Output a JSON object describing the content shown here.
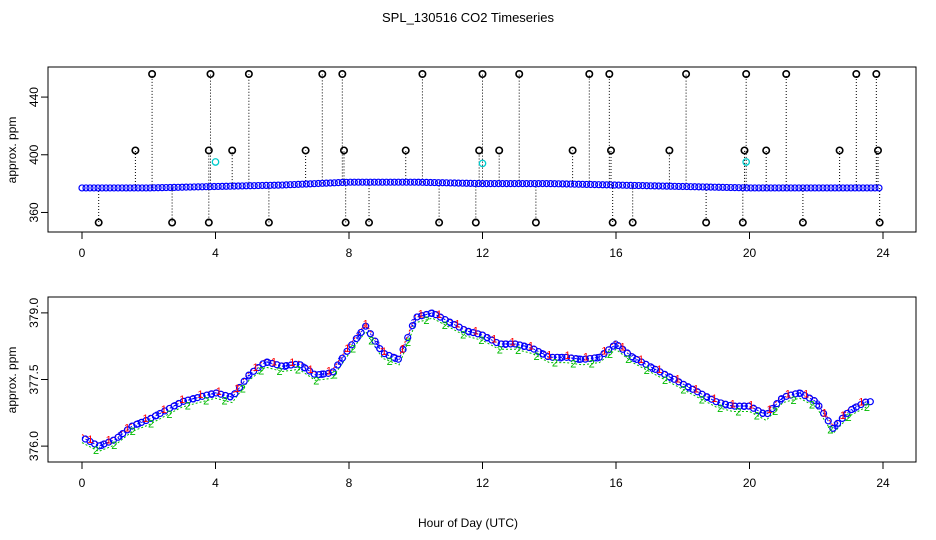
{
  "chart_data": {
    "title": "SPL_130516  CO2 Timeseries",
    "xlabel": "Hour of Day (UTC)",
    "panels": [
      {
        "type": "scatter",
        "ylabel": "approx. ppm",
        "xlim": [
          0,
          24
        ],
        "ylim": [
          352,
          456
        ],
        "xticks": [
          0,
          4,
          8,
          12,
          16,
          20,
          24
        ],
        "yticks": [
          360,
          400,
          440
        ],
        "baseline": [
          [
            0,
            377
          ],
          [
            2,
            377
          ],
          [
            4,
            378
          ],
          [
            6,
            379
          ],
          [
            8,
            381
          ],
          [
            10,
            381
          ],
          [
            12,
            380
          ],
          [
            14,
            380
          ],
          [
            16,
            379
          ],
          [
            18,
            378
          ],
          [
            20,
            377
          ],
          [
            22,
            377
          ],
          [
            24,
            377
          ]
        ],
        "spike_high_hours": [
          2.1,
          3.85,
          5.0,
          7.2,
          7.8,
          10.2,
          12.0,
          13.1,
          15.2,
          15.8,
          18.1,
          19.9,
          21.1,
          23.2,
          23.8
        ],
        "spike_mid_hours": [
          1.6,
          3.8,
          4.5,
          6.7,
          7.85,
          9.7,
          11.9,
          12.5,
          14.7,
          15.85,
          17.6,
          19.85,
          20.5,
          22.7,
          23.85
        ],
        "spike_low_hours": [
          0.5,
          2.7,
          3.8,
          5.6,
          7.9,
          8.6,
          10.7,
          11.8,
          13.6,
          15.9,
          16.5,
          18.7,
          19.8,
          21.6,
          23.9
        ],
        "high_value": 456,
        "mid_value": 403,
        "low_value": 353,
        "cyan_points": [
          [
            4.0,
            395
          ],
          [
            12.0,
            394
          ],
          [
            19.9,
            395
          ]
        ]
      },
      {
        "type": "line",
        "ylabel": "approx. ppm",
        "xlim": [
          0,
          24
        ],
        "ylim": [
          375.8,
          379.2
        ],
        "xticks": [
          0,
          4,
          8,
          12,
          16,
          20,
          24
        ],
        "yticks": [
          376.0,
          377.5,
          379.0
        ],
        "ytick_labels": [
          "376.0",
          "377.5",
          "379.0"
        ],
        "series": [
          {
            "name": "1",
            "color": "#ff0000",
            "offset": 0.06
          },
          {
            "name": "2",
            "color": "#00bb00",
            "offset": -0.12
          },
          {
            "name": "3",
            "color": "#0000ff",
            "offset": 0.0
          }
        ],
        "x": [
          0.0,
          0.5,
          1.0,
          1.5,
          2.0,
          2.5,
          3.0,
          3.5,
          4.0,
          4.5,
          5.0,
          5.5,
          6.0,
          6.5,
          7.0,
          7.5,
          8.0,
          8.5,
          9.0,
          9.5,
          10.0,
          10.5,
          11.0,
          11.5,
          12.0,
          12.5,
          13.0,
          13.5,
          14.0,
          14.5,
          15.0,
          15.5,
          16.0,
          16.5,
          17.0,
          17.5,
          18.0,
          18.5,
          19.0,
          19.5,
          20.0,
          20.5,
          21.0,
          21.5,
          22.0,
          22.5,
          23.0,
          23.5
        ],
        "values": [
          376.2,
          376.0,
          376.15,
          376.45,
          376.6,
          376.8,
          377.0,
          377.1,
          377.2,
          377.1,
          377.6,
          377.9,
          377.8,
          377.85,
          377.6,
          377.65,
          378.2,
          378.7,
          378.1,
          377.95,
          378.9,
          379.0,
          378.8,
          378.6,
          378.5,
          378.3,
          378.3,
          378.2,
          378.0,
          378.0,
          377.95,
          378.0,
          378.3,
          378.0,
          377.8,
          377.6,
          377.4,
          377.2,
          377.0,
          376.9,
          376.9,
          376.7,
          377.1,
          377.2,
          377.0,
          376.4,
          376.8,
          377.0
        ]
      }
    ]
  }
}
